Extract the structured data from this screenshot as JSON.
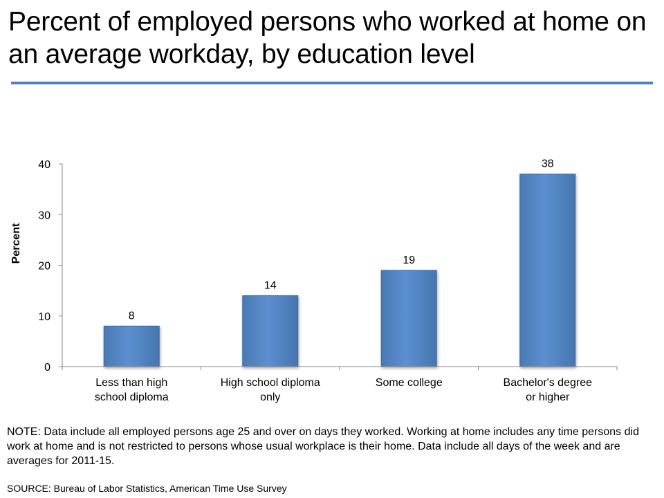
{
  "title": "Percent of employed persons who worked at home on an average workday, by education level",
  "note": "NOTE: Data include all employed persons age 25 and over on days they worked. Working at home includes any time persons did work at home and is not restricted to persons whose usual workplace is their home. Data include all days of the week and are averages for 2011-15.",
  "source": "SOURCE: Bureau of Labor Statistics, American Time Use Survey",
  "colors": {
    "accent_rule": "#4f81bd",
    "bar_fill": "#4f81bd"
  },
  "chart_data": {
    "type": "bar",
    "categories": [
      [
        "Less than high",
        "school diploma"
      ],
      [
        "High school diploma",
        "only"
      ],
      [
        "Some college"
      ],
      [
        "Bachelor's degree",
        "or higher"
      ]
    ],
    "values": [
      8,
      14,
      19,
      38
    ],
    "value_labels": [
      "8",
      "14",
      "19",
      "38"
    ],
    "ylabel": "Percent",
    "ylim": [
      0,
      40
    ],
    "yticks": [
      0,
      10,
      20,
      30,
      40
    ],
    "ytick_labels": [
      "0",
      "10",
      "20",
      "30",
      "40"
    ],
    "grid": false,
    "legend": "none"
  }
}
